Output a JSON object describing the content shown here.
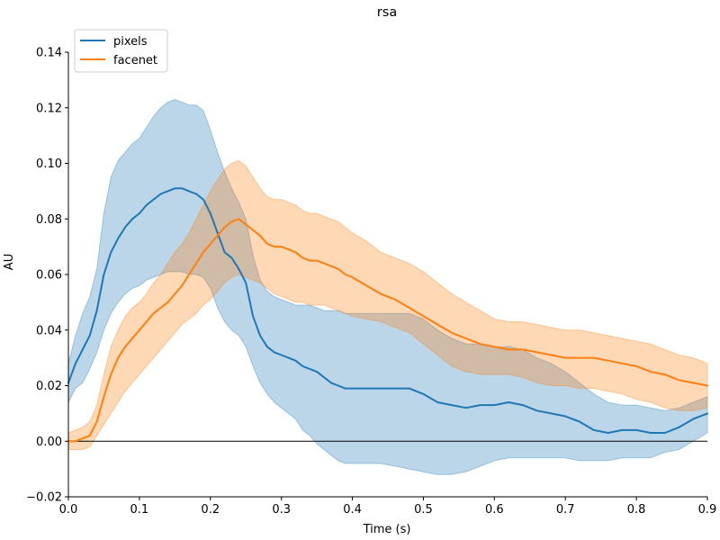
{
  "chart_data": {
    "type": "line",
    "title": "rsa",
    "xlabel": "Time (s)",
    "ylabel": "AU",
    "xlim": [
      0.0,
      0.9
    ],
    "ylim": [
      -0.02,
      0.14
    ],
    "x_ticks": [
      0.0,
      0.1,
      0.2,
      0.3,
      0.4,
      0.5,
      0.6,
      0.7,
      0.8,
      0.9
    ],
    "x_tick_labels": [
      "0.0",
      "0.1",
      "0.2",
      "0.3",
      "0.4",
      "0.5",
      "0.6",
      "0.7",
      "0.8",
      "0.9"
    ],
    "y_ticks": [
      -0.02,
      0.0,
      0.02,
      0.04,
      0.06,
      0.08,
      0.1,
      0.12,
      0.14
    ],
    "y_tick_labels": [
      "−0.02",
      "0.00",
      "0.02",
      "0.04",
      "0.06",
      "0.08",
      "0.10",
      "0.12",
      "0.14"
    ],
    "zero_line": 0.0,
    "legend_position": "upper-left",
    "series": [
      {
        "name": "pixels",
        "color": "#1f77b4",
        "fill_color": "#1f77b4",
        "points": [
          [
            0.0,
            0.021,
            0.014,
            0.028
          ],
          [
            0.01,
            0.028,
            0.019,
            0.038
          ],
          [
            0.02,
            0.033,
            0.021,
            0.046
          ],
          [
            0.03,
            0.038,
            0.026,
            0.052
          ],
          [
            0.04,
            0.047,
            0.032,
            0.062
          ],
          [
            0.05,
            0.06,
            0.04,
            0.082
          ],
          [
            0.06,
            0.068,
            0.046,
            0.095
          ],
          [
            0.07,
            0.073,
            0.05,
            0.101
          ],
          [
            0.08,
            0.077,
            0.053,
            0.104
          ],
          [
            0.09,
            0.08,
            0.055,
            0.107
          ],
          [
            0.1,
            0.082,
            0.056,
            0.109
          ],
          [
            0.11,
            0.085,
            0.058,
            0.113
          ],
          [
            0.12,
            0.087,
            0.059,
            0.117
          ],
          [
            0.13,
            0.089,
            0.06,
            0.12
          ],
          [
            0.14,
            0.09,
            0.061,
            0.122
          ],
          [
            0.15,
            0.091,
            0.061,
            0.123
          ],
          [
            0.16,
            0.091,
            0.061,
            0.122
          ],
          [
            0.17,
            0.09,
            0.06,
            0.121
          ],
          [
            0.18,
            0.089,
            0.06,
            0.121
          ],
          [
            0.19,
            0.087,
            0.059,
            0.119
          ],
          [
            0.2,
            0.082,
            0.055,
            0.112
          ],
          [
            0.21,
            0.075,
            0.048,
            0.104
          ],
          [
            0.22,
            0.068,
            0.043,
            0.097
          ],
          [
            0.23,
            0.066,
            0.04,
            0.091
          ],
          [
            0.24,
            0.062,
            0.038,
            0.086
          ],
          [
            0.25,
            0.057,
            0.034,
            0.08
          ],
          [
            0.26,
            0.045,
            0.027,
            0.067
          ],
          [
            0.27,
            0.038,
            0.021,
            0.058
          ],
          [
            0.28,
            0.034,
            0.017,
            0.054
          ],
          [
            0.29,
            0.032,
            0.014,
            0.052
          ],
          [
            0.3,
            0.031,
            0.012,
            0.051
          ],
          [
            0.31,
            0.03,
            0.01,
            0.05
          ],
          [
            0.32,
            0.029,
            0.008,
            0.049
          ],
          [
            0.33,
            0.027,
            0.004,
            0.049
          ],
          [
            0.34,
            0.026,
            0.002,
            0.049
          ],
          [
            0.35,
            0.025,
            -0.001,
            0.048
          ],
          [
            0.36,
            0.023,
            -0.003,
            0.047
          ],
          [
            0.37,
            0.021,
            -0.005,
            0.047
          ],
          [
            0.38,
            0.02,
            -0.007,
            0.047
          ],
          [
            0.39,
            0.019,
            -0.008,
            0.046
          ],
          [
            0.4,
            0.019,
            -0.008,
            0.046
          ],
          [
            0.42,
            0.019,
            -0.008,
            0.046
          ],
          [
            0.44,
            0.019,
            -0.008,
            0.046
          ],
          [
            0.46,
            0.019,
            -0.009,
            0.046
          ],
          [
            0.48,
            0.019,
            -0.01,
            0.046
          ],
          [
            0.5,
            0.017,
            -0.011,
            0.044
          ],
          [
            0.52,
            0.014,
            -0.012,
            0.04
          ],
          [
            0.54,
            0.013,
            -0.012,
            0.037
          ],
          [
            0.56,
            0.012,
            -0.011,
            0.035
          ],
          [
            0.58,
            0.013,
            -0.009,
            0.035
          ],
          [
            0.6,
            0.013,
            -0.007,
            0.034
          ],
          [
            0.62,
            0.014,
            -0.006,
            0.034
          ],
          [
            0.64,
            0.013,
            -0.006,
            0.033
          ],
          [
            0.66,
            0.011,
            -0.006,
            0.03
          ],
          [
            0.68,
            0.01,
            -0.006,
            0.028
          ],
          [
            0.7,
            0.009,
            -0.006,
            0.025
          ],
          [
            0.72,
            0.007,
            -0.007,
            0.021
          ],
          [
            0.74,
            0.004,
            -0.007,
            0.017
          ],
          [
            0.76,
            0.003,
            -0.007,
            0.014
          ],
          [
            0.78,
            0.004,
            -0.006,
            0.013
          ],
          [
            0.8,
            0.004,
            -0.006,
            0.013
          ],
          [
            0.82,
            0.003,
            -0.006,
            0.012
          ],
          [
            0.84,
            0.003,
            -0.004,
            0.011
          ],
          [
            0.86,
            0.005,
            -0.003,
            0.012
          ],
          [
            0.88,
            0.008,
            0.0,
            0.014
          ],
          [
            0.9,
            0.01,
            0.003,
            0.016
          ]
        ]
      },
      {
        "name": "facenet",
        "color": "#ff7f0e",
        "fill_color": "#ff7f0e",
        "points": [
          [
            0.0,
            0.0,
            -0.003,
            0.003
          ],
          [
            0.01,
            0.0,
            -0.003,
            0.004
          ],
          [
            0.02,
            0.001,
            -0.003,
            0.005
          ],
          [
            0.03,
            0.002,
            -0.002,
            0.007
          ],
          [
            0.04,
            0.007,
            0.002,
            0.013
          ],
          [
            0.05,
            0.016,
            0.006,
            0.024
          ],
          [
            0.06,
            0.024,
            0.01,
            0.034
          ],
          [
            0.07,
            0.03,
            0.014,
            0.04
          ],
          [
            0.08,
            0.034,
            0.018,
            0.045
          ],
          [
            0.09,
            0.037,
            0.021,
            0.048
          ],
          [
            0.1,
            0.04,
            0.024,
            0.05
          ],
          [
            0.11,
            0.043,
            0.027,
            0.053
          ],
          [
            0.12,
            0.046,
            0.03,
            0.057
          ],
          [
            0.13,
            0.048,
            0.033,
            0.06
          ],
          [
            0.14,
            0.05,
            0.036,
            0.064
          ],
          [
            0.15,
            0.053,
            0.039,
            0.068
          ],
          [
            0.16,
            0.056,
            0.042,
            0.071
          ],
          [
            0.17,
            0.06,
            0.044,
            0.075
          ],
          [
            0.18,
            0.064,
            0.046,
            0.08
          ],
          [
            0.19,
            0.068,
            0.049,
            0.085
          ],
          [
            0.2,
            0.071,
            0.051,
            0.09
          ],
          [
            0.21,
            0.074,
            0.054,
            0.094
          ],
          [
            0.22,
            0.077,
            0.057,
            0.098
          ],
          [
            0.23,
            0.079,
            0.059,
            0.1
          ],
          [
            0.24,
            0.08,
            0.06,
            0.101
          ],
          [
            0.25,
            0.078,
            0.059,
            0.099
          ],
          [
            0.26,
            0.076,
            0.058,
            0.095
          ],
          [
            0.27,
            0.074,
            0.057,
            0.091
          ],
          [
            0.28,
            0.071,
            0.055,
            0.088
          ],
          [
            0.29,
            0.07,
            0.053,
            0.087
          ],
          [
            0.3,
            0.07,
            0.052,
            0.087
          ],
          [
            0.31,
            0.069,
            0.051,
            0.086
          ],
          [
            0.32,
            0.068,
            0.05,
            0.085
          ],
          [
            0.33,
            0.066,
            0.05,
            0.083
          ],
          [
            0.34,
            0.065,
            0.049,
            0.082
          ],
          [
            0.35,
            0.065,
            0.049,
            0.082
          ],
          [
            0.36,
            0.064,
            0.049,
            0.081
          ],
          [
            0.37,
            0.063,
            0.048,
            0.08
          ],
          [
            0.38,
            0.062,
            0.047,
            0.079
          ],
          [
            0.39,
            0.06,
            0.046,
            0.077
          ],
          [
            0.4,
            0.059,
            0.045,
            0.075
          ],
          [
            0.42,
            0.056,
            0.044,
            0.072
          ],
          [
            0.44,
            0.053,
            0.043,
            0.068
          ],
          [
            0.46,
            0.051,
            0.041,
            0.066
          ],
          [
            0.48,
            0.048,
            0.039,
            0.064
          ],
          [
            0.5,
            0.045,
            0.035,
            0.061
          ],
          [
            0.52,
            0.042,
            0.031,
            0.057
          ],
          [
            0.54,
            0.039,
            0.027,
            0.053
          ],
          [
            0.56,
            0.037,
            0.025,
            0.05
          ],
          [
            0.58,
            0.035,
            0.024,
            0.047
          ],
          [
            0.6,
            0.034,
            0.024,
            0.044
          ],
          [
            0.62,
            0.033,
            0.024,
            0.043
          ],
          [
            0.64,
            0.033,
            0.023,
            0.043
          ],
          [
            0.66,
            0.032,
            0.021,
            0.042
          ],
          [
            0.68,
            0.031,
            0.02,
            0.041
          ],
          [
            0.7,
            0.03,
            0.02,
            0.04
          ],
          [
            0.72,
            0.03,
            0.019,
            0.04
          ],
          [
            0.74,
            0.03,
            0.019,
            0.039
          ],
          [
            0.76,
            0.029,
            0.018,
            0.038
          ],
          [
            0.78,
            0.028,
            0.017,
            0.037
          ],
          [
            0.8,
            0.027,
            0.015,
            0.036
          ],
          [
            0.82,
            0.025,
            0.014,
            0.035
          ],
          [
            0.84,
            0.024,
            0.012,
            0.033
          ],
          [
            0.86,
            0.022,
            0.011,
            0.031
          ],
          [
            0.88,
            0.021,
            0.011,
            0.03
          ],
          [
            0.9,
            0.02,
            0.012,
            0.028
          ]
        ]
      }
    ]
  }
}
